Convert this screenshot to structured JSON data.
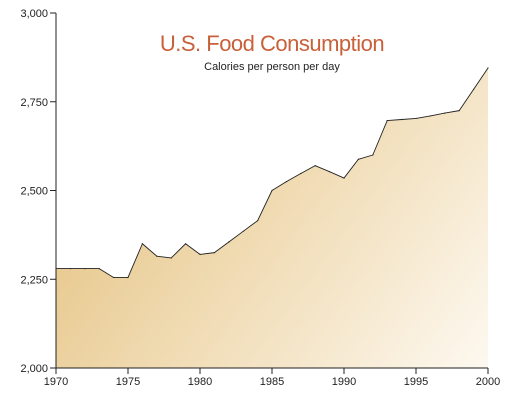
{
  "chart_data": {
    "type": "area",
    "title": "U.S. Food Consumption",
    "subtitle": "Calories per person per day",
    "xlabel": "",
    "ylabel": "",
    "xlim": [
      1970,
      2000
    ],
    "ylim": [
      2000,
      3000
    ],
    "x_ticks": [
      1970,
      1975,
      1980,
      1985,
      1990,
      1995,
      2000
    ],
    "x_tick_labels": [
      "1970",
      "1975",
      "1980",
      "1985",
      "1990",
      "1995",
      "2000"
    ],
    "y_ticks": [
      2000,
      2250,
      2500,
      2750,
      3000
    ],
    "y_tick_labels": [
      "2,000",
      "2,250",
      "2,500",
      "2,750",
      "3,000"
    ],
    "grid": false,
    "legend": "none",
    "colors": {
      "title": "#c8603a",
      "fill_top": "#e8c98e",
      "fill_bottom": "#fdf8ef",
      "line": "#222222",
      "axis": "#222222"
    },
    "series": [
      {
        "x": [
          1970,
          1971,
          1972,
          1973,
          1974,
          1975,
          1976,
          1977,
          1978,
          1979,
          1980,
          1981,
          1982,
          1983,
          1984,
          1985,
          1986,
          1987,
          1988,
          1989,
          1990,
          1991,
          1992,
          1993,
          1994,
          1995,
          1996,
          1997,
          1998,
          1999,
          2000
        ],
        "y": [
          2280,
          2280,
          2280,
          2280,
          2255,
          2255,
          2350,
          2315,
          2310,
          2350,
          2320,
          2325,
          2355,
          2385,
          2415,
          2500,
          2525,
          2548,
          2570,
          2553,
          2535,
          2588,
          2600,
          2697,
          2700,
          2703,
          2710,
          2718,
          2725,
          2785,
          2845
        ]
      }
    ]
  }
}
